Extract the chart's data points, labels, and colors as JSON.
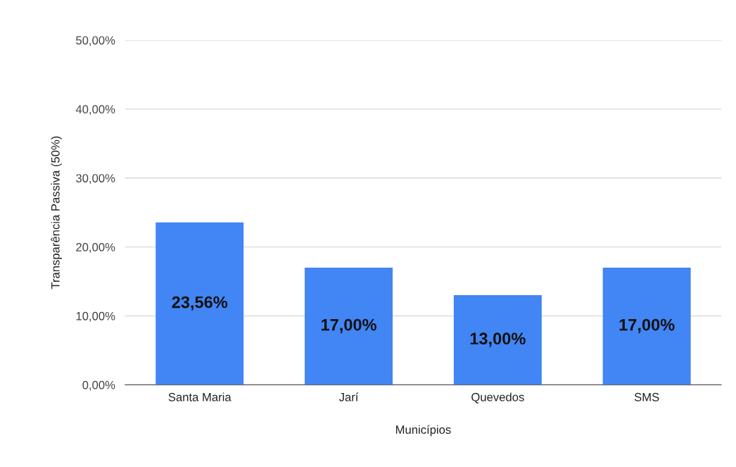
{
  "chart_data": {
    "type": "bar",
    "xlabel": "Municípios",
    "ylabel": "Transparência Passiva (50%)",
    "categories": [
      "Santa Maria",
      "Jarí",
      "Quevedos",
      "SMS"
    ],
    "values": [
      23.56,
      17.0,
      13.0,
      17.0
    ],
    "value_labels": [
      "23,56%",
      "17,00%",
      "13,00%",
      "17,00%"
    ],
    "color": "#4285f4",
    "ylim": [
      0,
      50
    ],
    "yticks": [
      {
        "value": 0,
        "label": "0,00%"
      },
      {
        "value": 10,
        "label": "10,00%"
      },
      {
        "value": 20,
        "label": "20,00%"
      },
      {
        "value": 30,
        "label": "30,00%"
      },
      {
        "value": 40,
        "label": "40,00%"
      },
      {
        "value": 50,
        "label": "50,00%"
      }
    ],
    "grid": "y"
  }
}
